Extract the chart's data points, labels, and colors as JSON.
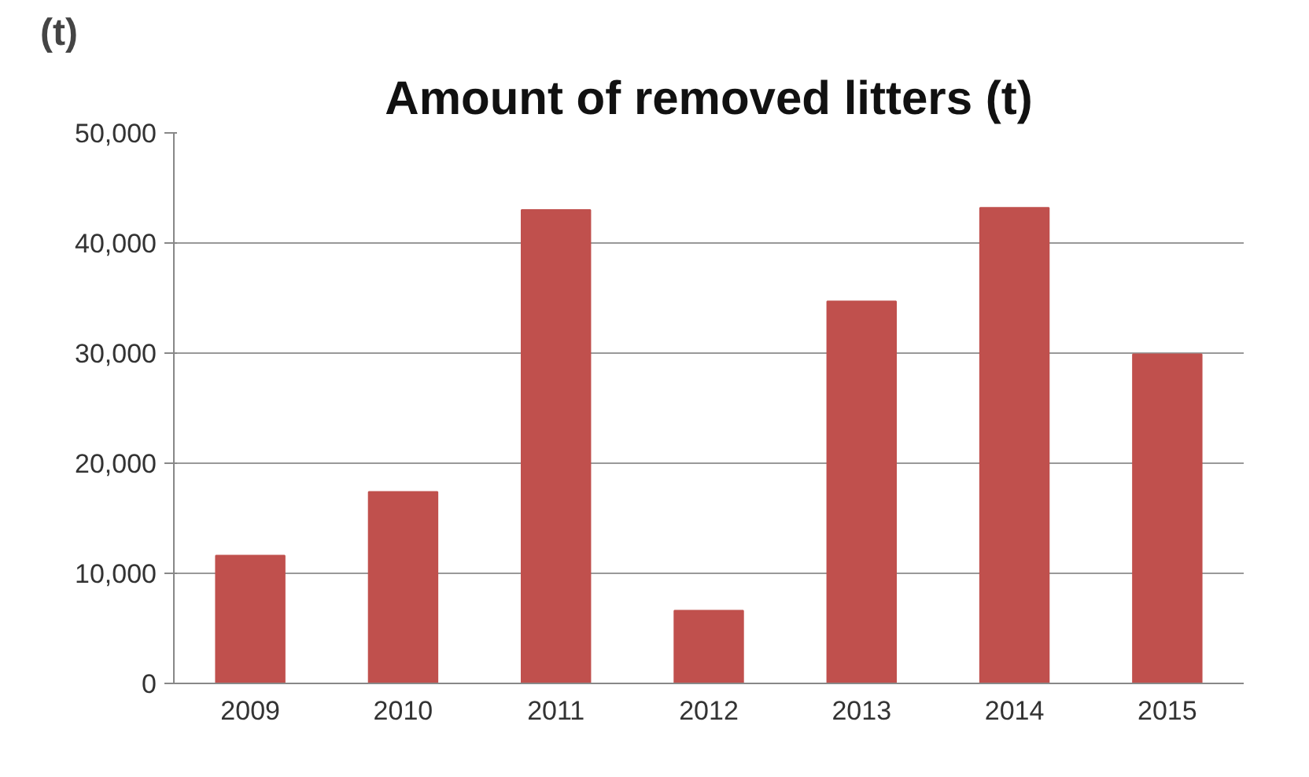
{
  "chart_data": {
    "type": "bar",
    "title": "Amount of removed litters (t)",
    "ylabel": "(t)",
    "categories": [
      "2009",
      "2010",
      "2011",
      "2012",
      "2013",
      "2014",
      "2015"
    ],
    "values": [
      11600,
      17400,
      43000,
      6600,
      34700,
      43200,
      29900
    ],
    "color": "#c0504d",
    "ylim": [
      0,
      50000
    ],
    "yticks": [
      {
        "value": 0,
        "label": "0"
      },
      {
        "value": 10000,
        "label": "10,000"
      },
      {
        "value": 20000,
        "label": "20,000"
      },
      {
        "value": 30000,
        "label": "30,000"
      },
      {
        "value": 40000,
        "label": "40,000"
      },
      {
        "value": 50000,
        "label": "50,000"
      }
    ],
    "grid": "y"
  }
}
